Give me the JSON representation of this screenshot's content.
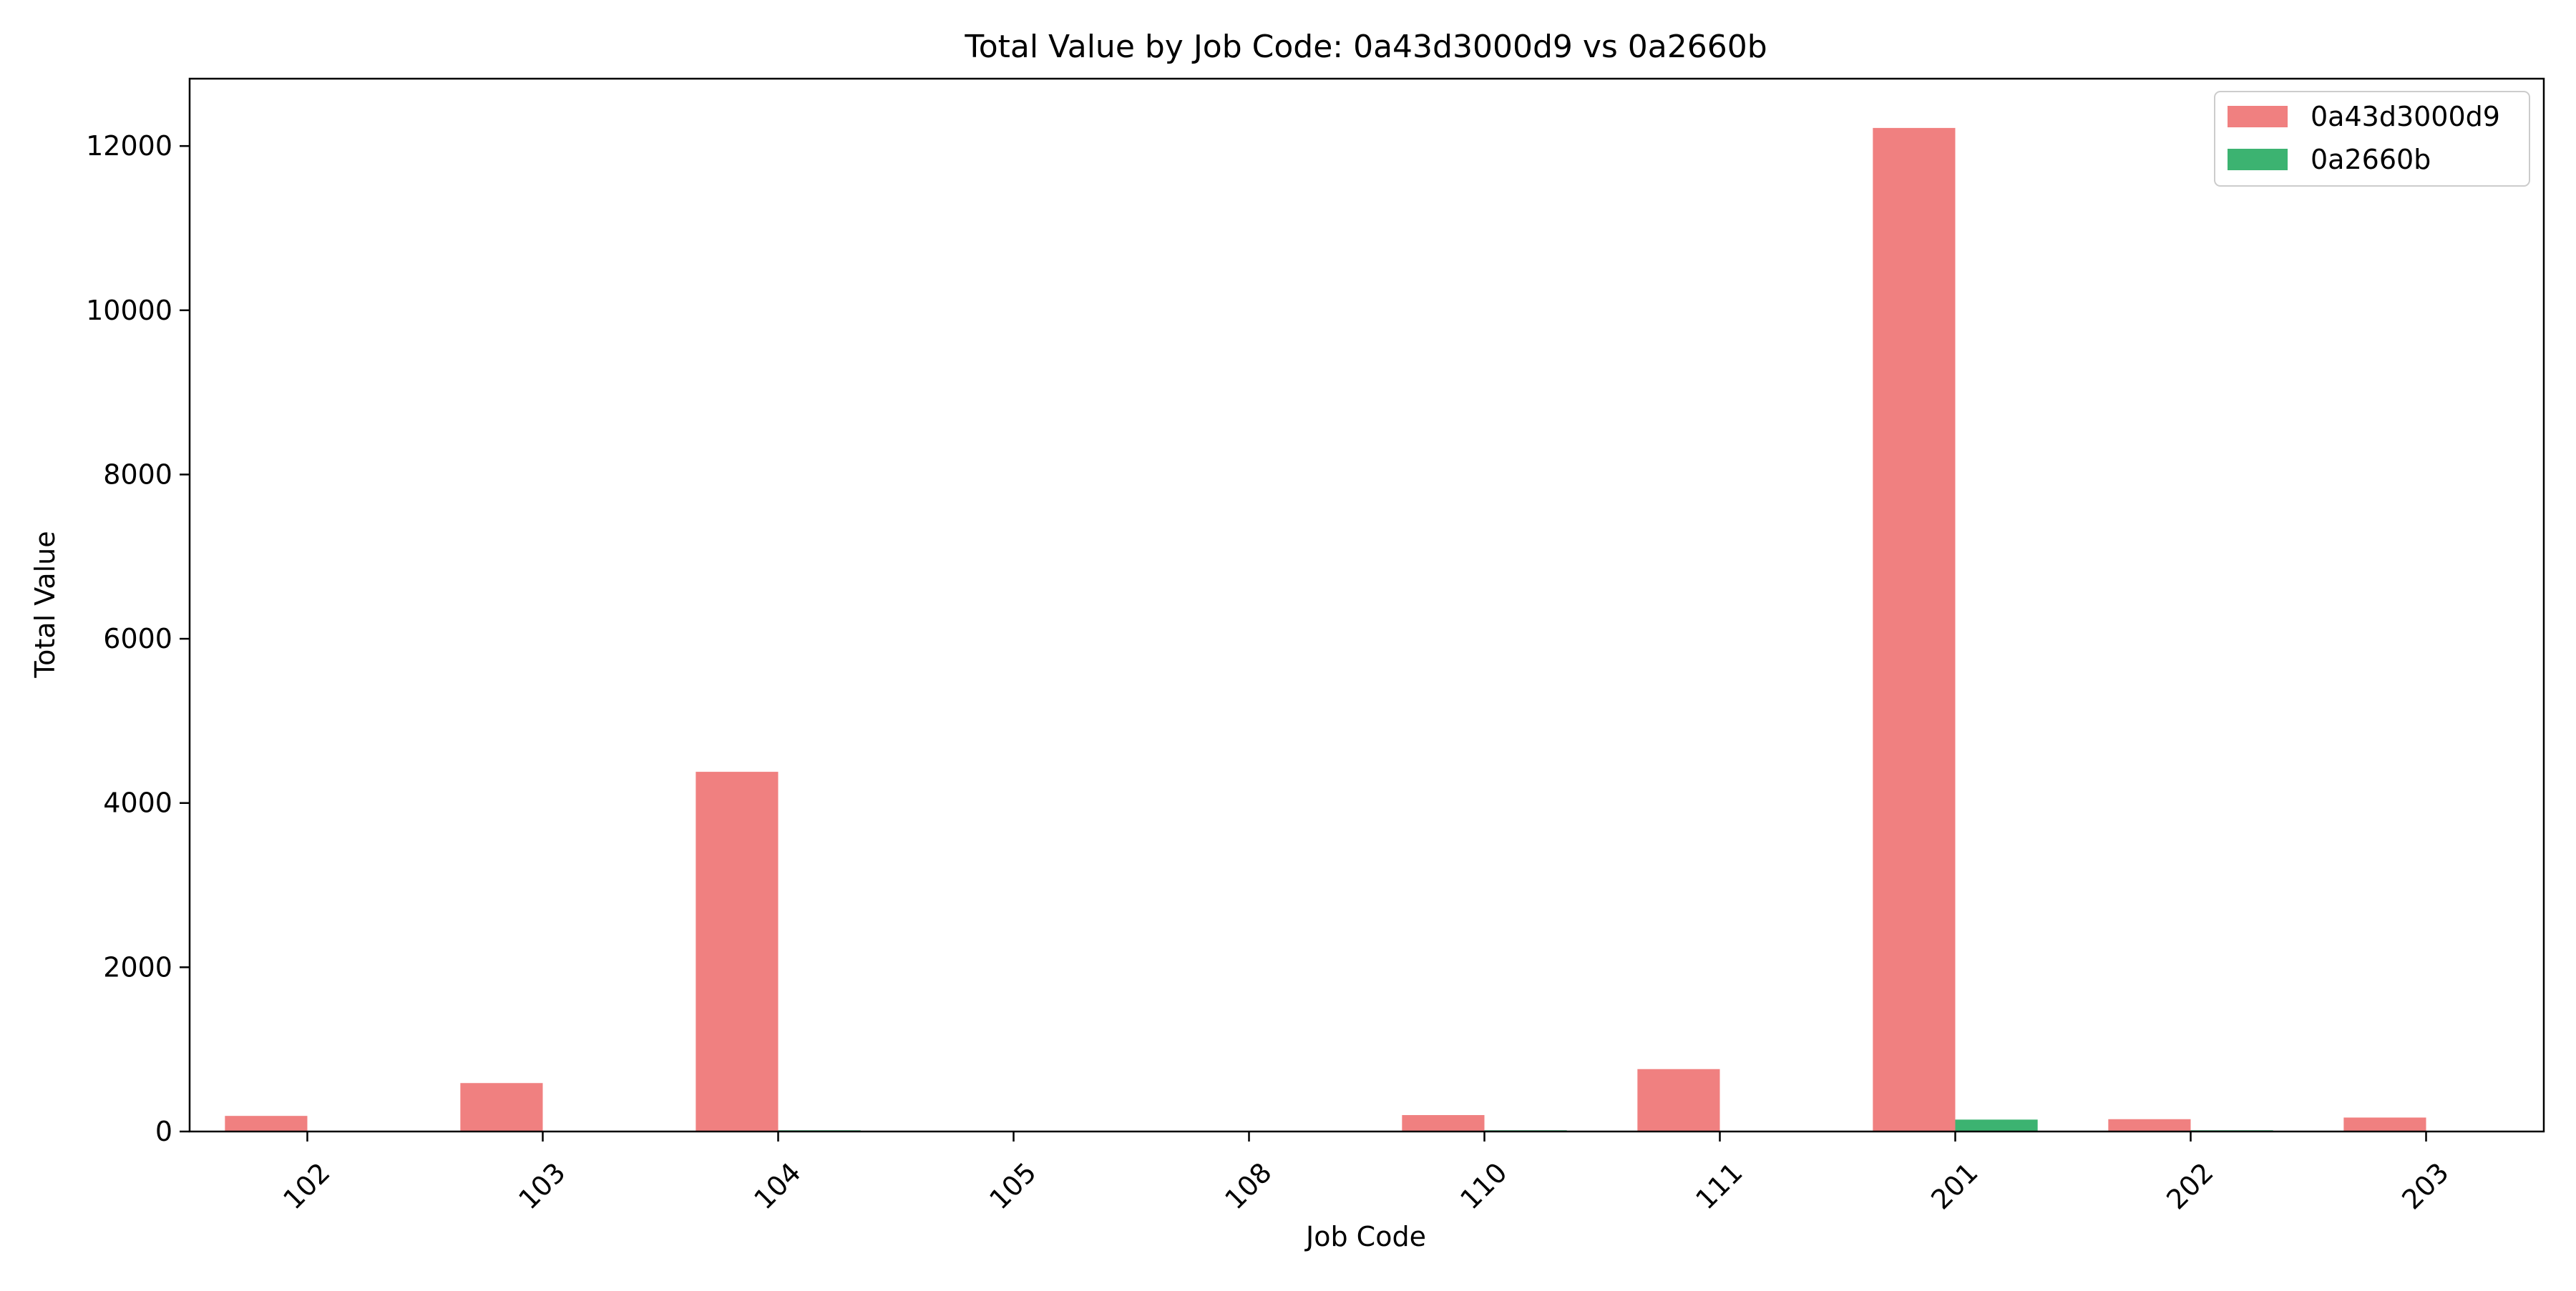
{
  "chart_data": {
    "type": "bar",
    "title": "Total Value by Job Code: 0a43d3000d9 vs 0a2660b",
    "xlabel": "Job Code",
    "ylabel": "Total Value",
    "categories": [
      "102",
      "103",
      "104",
      "105",
      "108",
      "110",
      "111",
      "201",
      "202",
      "203"
    ],
    "series": [
      {
        "name": "0a43d3000d9",
        "color": "#f08080",
        "values": [
          190,
          590,
          4380,
          0,
          0,
          200,
          760,
          12220,
          150,
          170
        ]
      },
      {
        "name": "0a2660b",
        "color": "#3cb371",
        "values": [
          0,
          0,
          15,
          0,
          0,
          15,
          0,
          145,
          15,
          0
        ]
      }
    ],
    "ylim": [
      0,
      12820
    ],
    "yticks": [
      0,
      2000,
      4000,
      6000,
      8000,
      10000,
      12000
    ],
    "grid": false,
    "legend_position": "top-right"
  }
}
